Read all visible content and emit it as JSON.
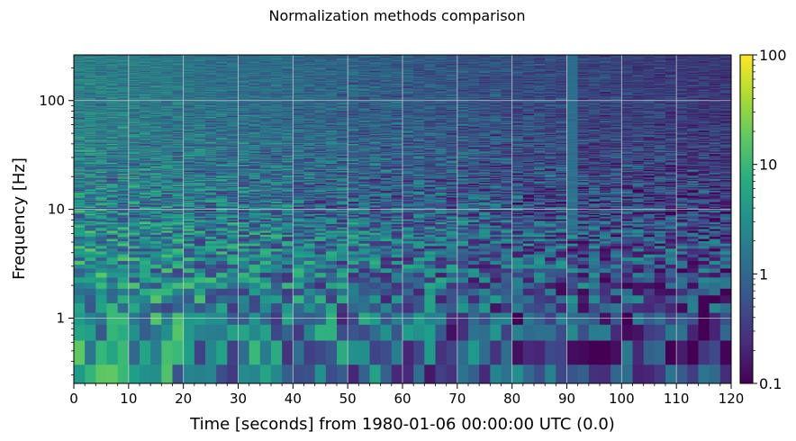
{
  "chart_data": {
    "type": "heatmap",
    "title": "Normalization methods comparison",
    "xlabel": "Time [seconds] from 1980-01-06 00:00:00 UTC (0.0)",
    "ylabel": "Frequency [Hz]",
    "xlim": [
      0,
      120
    ],
    "ylim_log10": [
      -0.6,
      2.42
    ],
    "y_scale": "log",
    "x_ticks": [
      0,
      10,
      20,
      30,
      40,
      50,
      60,
      70,
      80,
      90,
      100,
      110,
      120
    ],
    "x_tick_labels": [
      "0",
      "10",
      "20",
      "30",
      "40",
      "50",
      "60",
      "70",
      "80",
      "90",
      "100",
      "110",
      "120"
    ],
    "y_ticks": [
      1,
      10,
      100
    ],
    "y_tick_labels": [
      "1",
      "10",
      "100"
    ],
    "grid": true,
    "colormap": "viridis",
    "colorbar": {
      "scale": "log",
      "range": [
        0.1,
        100
      ],
      "ticks": [
        0.1,
        1,
        10,
        100
      ],
      "tick_labels": [
        "0.1",
        "1",
        "10",
        "100"
      ]
    },
    "time_bin_seconds": 2,
    "notable_features": [
      {
        "x_range": [
          89,
          92
        ],
        "description_value": 1.3
      }
    ]
  },
  "colors": {
    "viridis_low": "#440154",
    "viridis_mid": "#21918c",
    "viridis_high": "#fde725",
    "grid": "#d9d9d9"
  }
}
